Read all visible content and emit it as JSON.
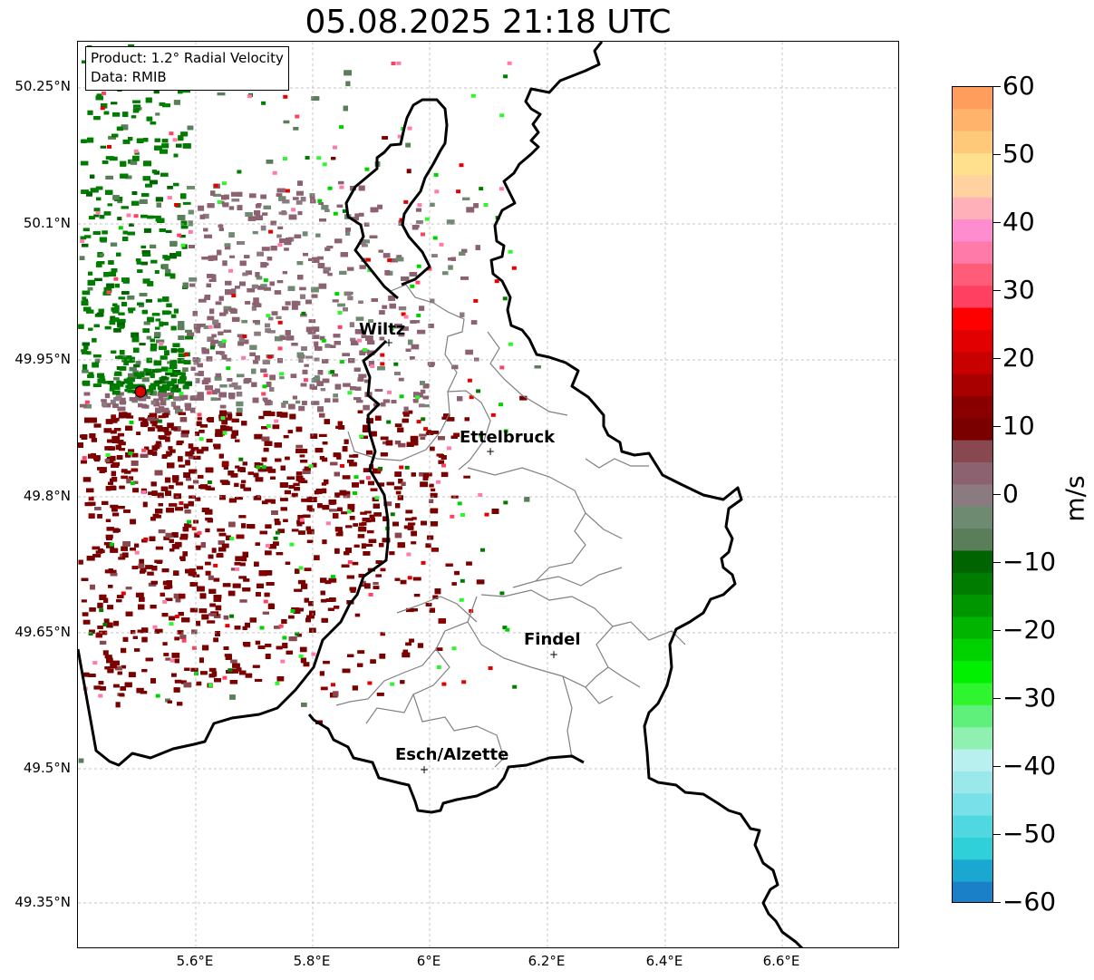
{
  "title": "05.08.2025 21:18 UTC",
  "info": {
    "product": "Product: 1.2° Radial Velocity",
    "data_source": "Data: RMIB"
  },
  "y_axis_labels": [
    "50.25°N",
    "50.1°N",
    "49.95°N",
    "49.8°N",
    "49.65°N",
    "49.5°N",
    "49.35°N"
  ],
  "x_axis_labels": [
    "5.6°E",
    "5.8°E",
    "6°E",
    "6.2°E",
    "6.4°E",
    "6.6°E"
  ],
  "cities": [
    {
      "name": "Wiltz"
    },
    {
      "name": "Ettelbruck"
    },
    {
      "name": "Findel"
    },
    {
      "name": "Esch/Alzette"
    }
  ],
  "colorbar": {
    "unit": "m/s",
    "tick_labels": [
      "60",
      "50",
      "40",
      "30",
      "20",
      "10",
      "0",
      "−10",
      "−20",
      "−30",
      "−40",
      "−50",
      "−60"
    ],
    "range": [
      -60,
      60
    ],
    "colors_top_to_bottom": [
      "#ff9d5c",
      "#ffb36b",
      "#ffc979",
      "#ffe08c",
      "#ffd2a0",
      "#ffb0b8",
      "#ff8ccf",
      "#ff7aa8",
      "#ff5c7a",
      "#ff4060",
      "#ff0000",
      "#e30000",
      "#c80000",
      "#a80000",
      "#8a0000",
      "#7a0000",
      "#884850",
      "#8c6270",
      "#8b7a80",
      "#6e8a70",
      "#5a7e5a",
      "#006400",
      "#007d00",
      "#009600",
      "#00b400",
      "#00d200",
      "#00f000",
      "#2ef52e",
      "#5ef07a",
      "#90f0b0",
      "#b8f0f0",
      "#9ae8ea",
      "#78e0e8",
      "#50d8e0",
      "#30d0d8",
      "#1aa8d0",
      "#1a80c8"
    ]
  },
  "radar_site_color": "#e00000"
}
